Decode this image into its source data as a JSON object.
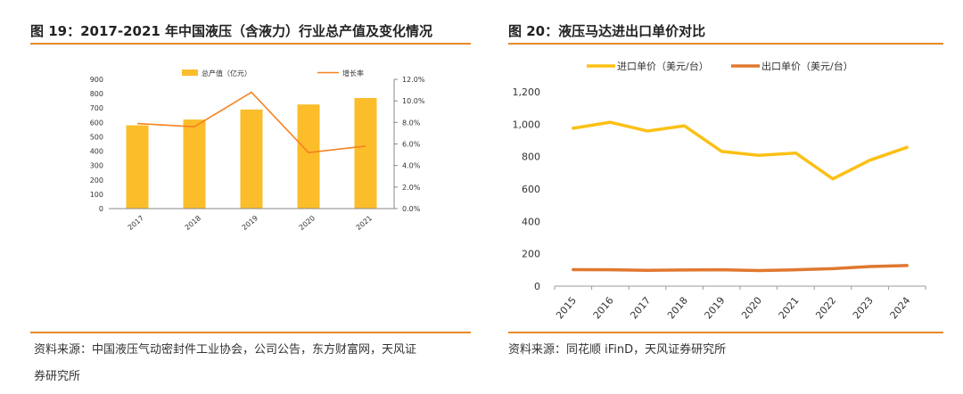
{
  "left_panel": {
    "title": "图 19：2017-2021 年中国液压（含液力）行业总产值及变化情况",
    "source_line1": "资料来源：中国液压气动密封件工业协会，公司公告，东方财富网，天风证",
    "source_line2": "券研究所"
  },
  "right_panel": {
    "title": "图 20：液压马达进出口单价对比",
    "source_line1": "资料来源：同花顺 iFinD，天风证券研究所"
  },
  "colors": {
    "accent": "#e8892a",
    "bar": "#fbbd2a",
    "line_orange": "#f58220",
    "import": "#fbc015",
    "export": "#e0782f"
  },
  "chart_data": [
    {
      "type": "bar",
      "categories": [
        "2017",
        "2018",
        "2019",
        "2020",
        "2021"
      ],
      "series": [
        {
          "name": "总产值（亿元）",
          "type": "bar",
          "axis": "left",
          "values": [
            580,
            620,
            690,
            725,
            770
          ]
        },
        {
          "name": "增长率",
          "type": "line",
          "axis": "right",
          "values": [
            7.9,
            7.6,
            10.8,
            5.2,
            5.8
          ]
        }
      ],
      "ylim": [
        0,
        900
      ],
      "yticks": [
        "0",
        "100",
        "200",
        "300",
        "400",
        "500",
        "600",
        "700",
        "800",
        "900"
      ],
      "y2lim": [
        0,
        12
      ],
      "y2ticks": [
        "0.0%",
        "2.0%",
        "4.0%",
        "6.0%",
        "8.0%",
        "10.0%",
        "12.0%"
      ],
      "legend": "top"
    },
    {
      "type": "line",
      "x": [
        "2015",
        "2016",
        "2017",
        "2018",
        "2019",
        "2020",
        "2021",
        "2022",
        "2023",
        "2024"
      ],
      "series": [
        {
          "name": "进口单价（美元/台）",
          "values": [
            975,
            1012,
            958,
            990,
            832,
            808,
            822,
            662,
            778,
            857
          ]
        },
        {
          "name": "出口单价（美元/台）",
          "values": [
            102,
            101,
            98,
            100,
            101,
            96,
            101,
            108,
            121,
            127
          ]
        }
      ],
      "ylim": [
        0,
        1200
      ],
      "yticks": [
        "0",
        "200",
        "400",
        "600",
        "800",
        "1,000",
        "1,200"
      ],
      "legend": "top"
    }
  ]
}
